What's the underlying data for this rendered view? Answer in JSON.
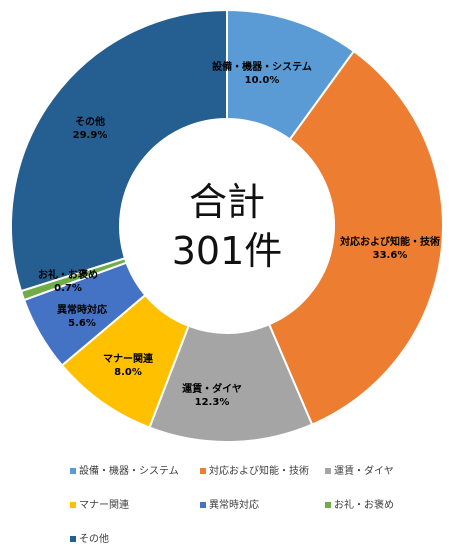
{
  "chart_data": {
    "type": "pie",
    "donut": true,
    "center_label": [
      "合計",
      "301件"
    ],
    "legend_position": "bottom",
    "slices": [
      {
        "name": "設備・機器・システム",
        "value": 10.0,
        "label": "10.0%",
        "color": "#5b9bd5"
      },
      {
        "name": "対応および知能・技術",
        "value": 33.6,
        "label": "33.6%",
        "color": "#ed7d31"
      },
      {
        "name": "運賃・ダイヤ",
        "value": 12.3,
        "label": "12.3%",
        "color": "#a5a5a5"
      },
      {
        "name": "マナー関連",
        "value": 8.0,
        "label": "8.0%",
        "color": "#ffc000"
      },
      {
        "name": "異常時対応",
        "value": 5.6,
        "label": "5.6%",
        "color": "#4472c4"
      },
      {
        "name": "お礼・お褒め",
        "value": 0.7,
        "label": "0.7%",
        "color": "#70ad47"
      },
      {
        "name": "その他",
        "value": 29.9,
        "label": "29.9%",
        "color": "#255e91"
      }
    ]
  }
}
